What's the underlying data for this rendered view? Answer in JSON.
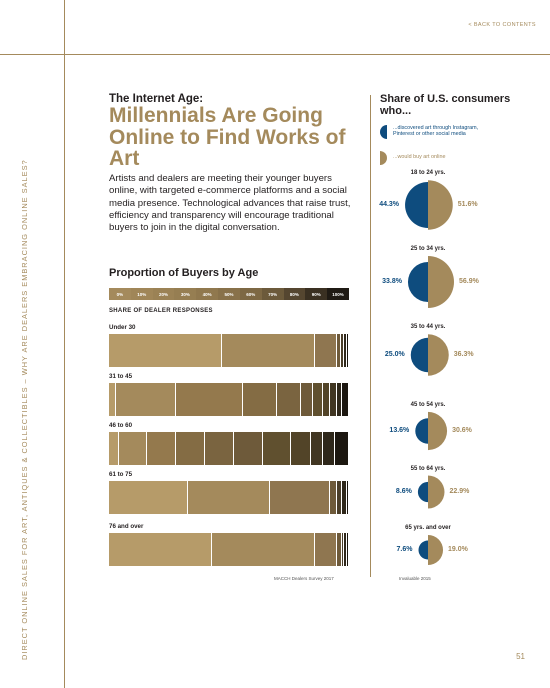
{
  "nav": {
    "back_label": "< BACK TO CONTENTS"
  },
  "sidebar_text": "DIRECT ONLINE SALES FOR ART, ANTIQUES & COLLECTIBLES  –  WHY ARE DEALERS EMBRACING ONLINE SALES?",
  "page_number": "51",
  "pretitle": "The Internet Age:",
  "title": "Millennials Are Going Online to Find Works of Art",
  "intro": "Artists and dealers are meeting their younger buyers online, with targeted e-commerce platforms and a social media presence. Technological advances that raise trust, efficiency and transparency will encourage traditional buyers to join in the digital conversation.",
  "colors": {
    "gold": "#a48a5c",
    "blue": "#0e4c7e"
  },
  "chart_data": [
    {
      "type": "bar",
      "title": "Proportion of Buyers by Age",
      "subtitle": "SHARE OF DEALER RESPONSES",
      "source": "MACCH Dealers Survey 2017",
      "scale_labels": [
        "0%",
        "10%",
        "20%",
        "30%",
        "40%",
        "50%",
        "60%",
        "70%",
        "80%",
        "90%",
        "100%"
      ],
      "scale_colors": [
        "#a48a5c",
        "#a08658",
        "#9b8255",
        "#967e52",
        "#90784e",
        "#88714a",
        "#7d6844",
        "#6c5a3b",
        "#554630",
        "#3a3022",
        "#1f1a14"
      ],
      "categories": [
        "Under 30",
        "31 to 45",
        "46 to 60",
        "61 to 75",
        "76 and over"
      ],
      "rows": [
        [
          47,
          39,
          9,
          1.5,
          1.5,
          1,
          1
        ],
        [
          3,
          25,
          28,
          14,
          10,
          5,
          4,
          3,
          3,
          2,
          3
        ],
        [
          4,
          12,
          12,
          12,
          12,
          12,
          12,
          8,
          5,
          5,
          6
        ],
        [
          33,
          34,
          25,
          3,
          2,
          2,
          1
        ],
        [
          43,
          43,
          9,
          2,
          1,
          1,
          1
        ]
      ]
    },
    {
      "type": "pie",
      "title": "Share of U.S. consumers who...",
      "source": "Invaluable 2015",
      "series": [
        {
          "name": "...discovered art through Instagram, Pinterest or other social media",
          "color": "#0e4c7e"
        },
        {
          "name": "...would buy art online",
          "color": "#a48a5c"
        }
      ],
      "groups": [
        {
          "label": "18 to 24 yrs.",
          "discovered": 44.3,
          "buy": 51.6,
          "discovered_label": "44.3%",
          "buy_label": "51.6%"
        },
        {
          "label": "25 to 34 yrs.",
          "discovered": 33.8,
          "buy": 56.9,
          "discovered_label": "33.8%",
          "buy_label": "56.9%"
        },
        {
          "label": "35 to 44 yrs.",
          "discovered": 25.0,
          "buy": 36.3,
          "discovered_label": "25.0%",
          "buy_label": "36.3%"
        },
        {
          "label": "45 to 54 yrs.",
          "discovered": 13.6,
          "buy": 30.6,
          "discovered_label": "13.6%",
          "buy_label": "30.6%"
        },
        {
          "label": "55 to 64 yrs.",
          "discovered": 8.6,
          "buy": 22.9,
          "discovered_label": "8.6%",
          "buy_label": "22.9%"
        },
        {
          "label": "65 yrs. and over",
          "discovered": 7.6,
          "buy": 19.0,
          "discovered_label": "7.6%",
          "buy_label": "19.0%"
        }
      ]
    }
  ]
}
